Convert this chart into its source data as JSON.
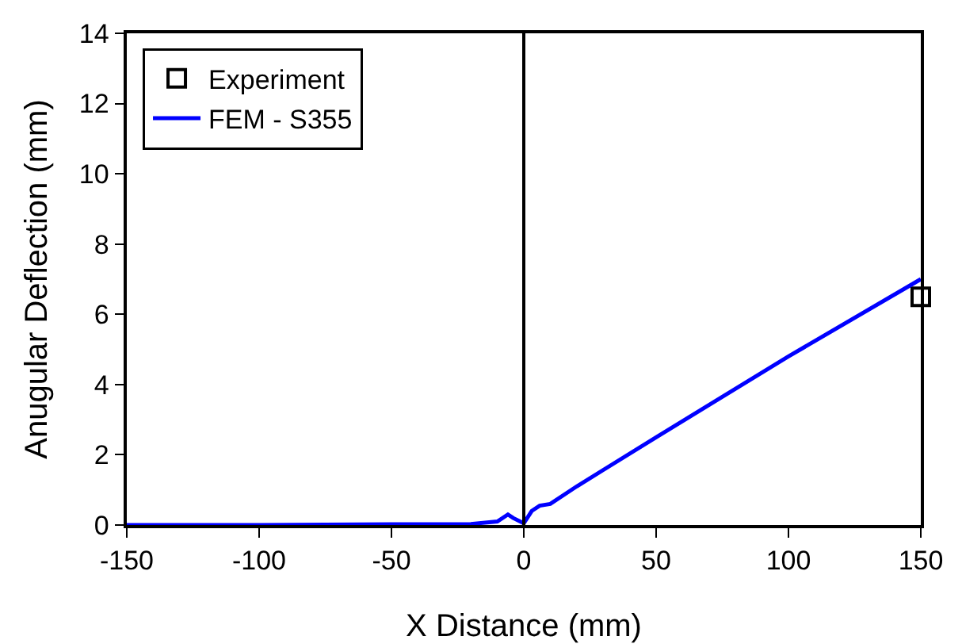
{
  "chart_data": {
    "type": "line",
    "xlabel": "X Distance (mm)",
    "ylabel": "Anugular Deflection (mm)",
    "series": [
      {
        "name": "Experiment",
        "type": "scatter",
        "marker": "square",
        "color": "#000000",
        "x": [
          150
        ],
        "values": [
          6.5
        ]
      },
      {
        "name": "FEM - S355",
        "marker": "none",
        "line_style": "solid",
        "color": "#0000ff",
        "x": [
          -150,
          -100,
          -50,
          -20,
          -10,
          -6,
          -4,
          0,
          3,
          6,
          10,
          20,
          50,
          100,
          150
        ],
        "values": [
          0,
          0,
          0.02,
          0.03,
          0.1,
          0.3,
          0.2,
          0.05,
          0.4,
          0.55,
          0.6,
          1.1,
          2.5,
          4.8,
          7.0
        ]
      }
    ],
    "xlim": [
      -150,
      150
    ],
    "xticks": [
      -150,
      -100,
      -50,
      0,
      50,
      100,
      150
    ],
    "ylim": [
      0,
      14
    ],
    "yticks": [
      0,
      2,
      4,
      6,
      8,
      10,
      12,
      14
    ],
    "ref_lines": [
      {
        "axis": "x",
        "value": 0,
        "color": "#000000",
        "line_style": "solid"
      }
    ],
    "grid": false,
    "legend": "top left"
  }
}
